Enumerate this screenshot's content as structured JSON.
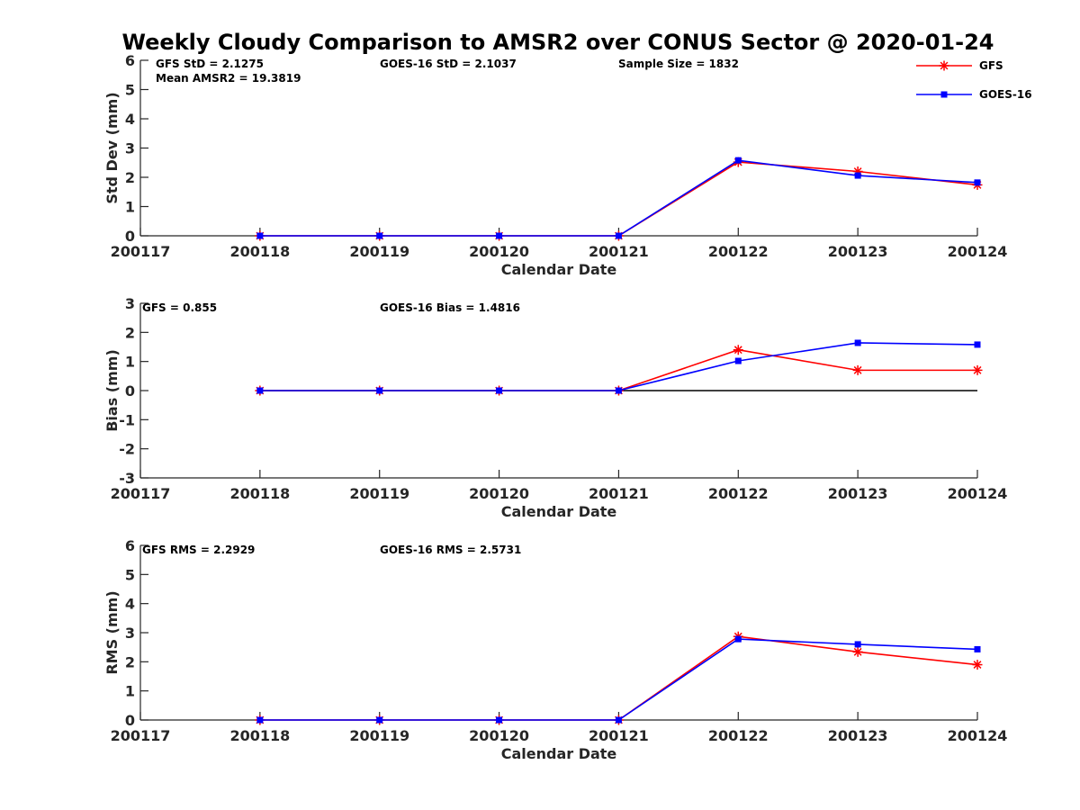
{
  "title": "Weekly Cloudy Comparison to AMSR2 over CONUS Sector @ 2020-01-24",
  "legend": [
    {
      "label": "GFS",
      "color": "#ff0000",
      "marker": "asterisk"
    },
    {
      "label": "GOES-16",
      "color": "#0000ff",
      "marker": "square"
    }
  ],
  "chart_data": [
    {
      "type": "line",
      "id": "std",
      "xlabel": "Calendar Date",
      "ylabel": "Std Dev (mm)",
      "x_ticks": [
        "200117",
        "200118",
        "200119",
        "200120",
        "200121",
        "200122",
        "200123",
        "200124"
      ],
      "ylim": [
        0,
        6
      ],
      "y_ticks": [
        "0",
        "1",
        "2",
        "3",
        "4",
        "5",
        "6"
      ],
      "zero_line": false,
      "annotations": [
        "GFS StD = 2.1275",
        "GOES-16 StD = 2.1037",
        "Sample Size = 1832",
        "Mean AMSR2 = 19.3819"
      ],
      "series": [
        {
          "name": "GFS",
          "color": "#ff0000",
          "marker": "asterisk",
          "x": [
            "200118",
            "200119",
            "200120",
            "200121",
            "200122",
            "200123",
            "200124"
          ],
          "values": [
            0,
            0,
            0,
            0,
            2.52,
            2.2,
            1.74
          ]
        },
        {
          "name": "GOES-16",
          "color": "#0000ff",
          "marker": "square",
          "x": [
            "200118",
            "200119",
            "200120",
            "200121",
            "200122",
            "200123",
            "200124"
          ],
          "values": [
            0,
            0,
            0,
            0,
            2.58,
            2.06,
            1.82
          ]
        }
      ]
    },
    {
      "type": "line",
      "id": "bias",
      "xlabel": "Calendar Date",
      "ylabel": "Bias (mm)",
      "x_ticks": [
        "200117",
        "200118",
        "200119",
        "200120",
        "200121",
        "200122",
        "200123",
        "200124"
      ],
      "ylim": [
        -3,
        3
      ],
      "y_ticks": [
        "-3",
        "-2",
        "-1",
        "0",
        "1",
        "2",
        "3"
      ],
      "zero_line": true,
      "annotations": [
        "GFS = 0.855",
        "GOES-16 Bias  = 1.4816"
      ],
      "series": [
        {
          "name": "GFS",
          "color": "#ff0000",
          "marker": "asterisk",
          "x": [
            "200118",
            "200119",
            "200120",
            "200121",
            "200122",
            "200123",
            "200124"
          ],
          "values": [
            0,
            0,
            0,
            0,
            1.4,
            0.7,
            0.7
          ]
        },
        {
          "name": "GOES-16",
          "color": "#0000ff",
          "marker": "square",
          "x": [
            "200118",
            "200119",
            "200120",
            "200121",
            "200122",
            "200123",
            "200124"
          ],
          "values": [
            0,
            0,
            0,
            0,
            1.02,
            1.64,
            1.58
          ]
        }
      ]
    },
    {
      "type": "line",
      "id": "rms",
      "xlabel": "Calendar Date",
      "ylabel": "RMS (mm)",
      "x_ticks": [
        "200117",
        "200118",
        "200119",
        "200120",
        "200121",
        "200122",
        "200123",
        "200124"
      ],
      "ylim": [
        0,
        6
      ],
      "y_ticks": [
        "0",
        "1",
        "2",
        "3",
        "4",
        "5",
        "6"
      ],
      "zero_line": false,
      "annotations": [
        "GFS RMS = 2.2929",
        "GOES-16 RMS = 2.5731"
      ],
      "series": [
        {
          "name": "GFS",
          "color": "#ff0000",
          "marker": "asterisk",
          "x": [
            "200118",
            "200119",
            "200120",
            "200121",
            "200122",
            "200123",
            "200124"
          ],
          "values": [
            0,
            0,
            0,
            0,
            2.87,
            2.34,
            1.9
          ]
        },
        {
          "name": "GOES-16",
          "color": "#0000ff",
          "marker": "square",
          "x": [
            "200118",
            "200119",
            "200120",
            "200121",
            "200122",
            "200123",
            "200124"
          ],
          "values": [
            0,
            0,
            0,
            0,
            2.78,
            2.6,
            2.43
          ]
        }
      ]
    }
  ]
}
